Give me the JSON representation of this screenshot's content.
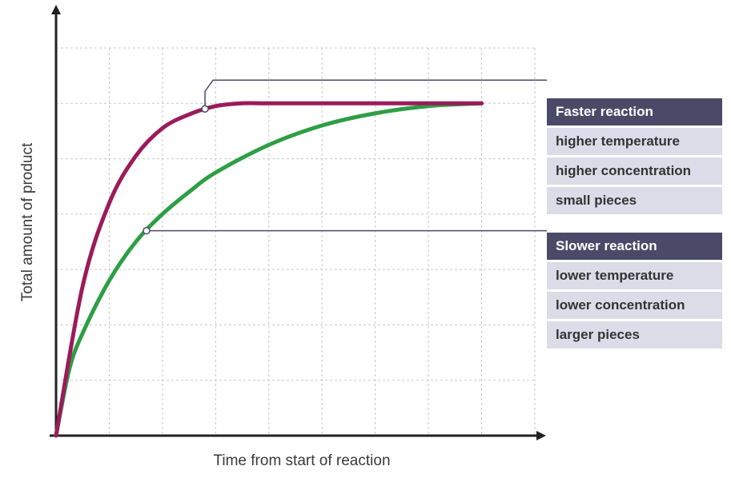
{
  "colors": {
    "faster": "#9b1b5a",
    "slower": "#2e9e45",
    "panel_header": "#4a4a68",
    "panel_row": "#dcdce8",
    "grid": "#c8c8c8",
    "axis": "#222222"
  },
  "chart_data": {
    "type": "line",
    "title": "",
    "xlabel": "Time from start of reaction",
    "ylabel": "Total amount of product",
    "grid": true,
    "legend": "right",
    "xlim": [
      0,
      9
    ],
    "ylim": [
      0,
      7
    ],
    "series": [
      {
        "name": "Faster reaction",
        "points": [
          [
            0,
            0
          ],
          [
            0.5,
            2.7
          ],
          [
            1,
            4.2
          ],
          [
            1.5,
            5.05
          ],
          [
            2,
            5.55
          ],
          [
            2.5,
            5.8
          ],
          [
            3,
            5.95
          ],
          [
            3.5,
            6.0
          ],
          [
            4,
            6.0
          ],
          [
            5,
            6.0
          ],
          [
            6,
            6.0
          ],
          [
            7,
            6.0
          ],
          [
            8,
            6.0
          ]
        ]
      },
      {
        "name": "Slower reaction",
        "points": [
          [
            0,
            0
          ],
          [
            0.25,
            1.2
          ],
          [
            0.5,
            1.85
          ],
          [
            1,
            2.8
          ],
          [
            1.5,
            3.5
          ],
          [
            2,
            4.0
          ],
          [
            2.5,
            4.4
          ],
          [
            3,
            4.75
          ],
          [
            4,
            5.25
          ],
          [
            5,
            5.6
          ],
          [
            6,
            5.82
          ],
          [
            7,
            5.95
          ],
          [
            8,
            6.0
          ]
        ]
      }
    ],
    "annotations": [
      {
        "series": "Faster reaction",
        "point": [
          2.8,
          5.9
        ]
      },
      {
        "series": "Slower reaction",
        "point": [
          1.7,
          3.7
        ]
      }
    ]
  },
  "legend_panels": {
    "faster": {
      "header": "Faster reaction",
      "items": [
        "higher temperature",
        "higher concentration",
        "small pieces"
      ]
    },
    "slower": {
      "header": "Slower reaction",
      "items": [
        "lower temperature",
        "lower concentration",
        "larger pieces"
      ]
    }
  }
}
